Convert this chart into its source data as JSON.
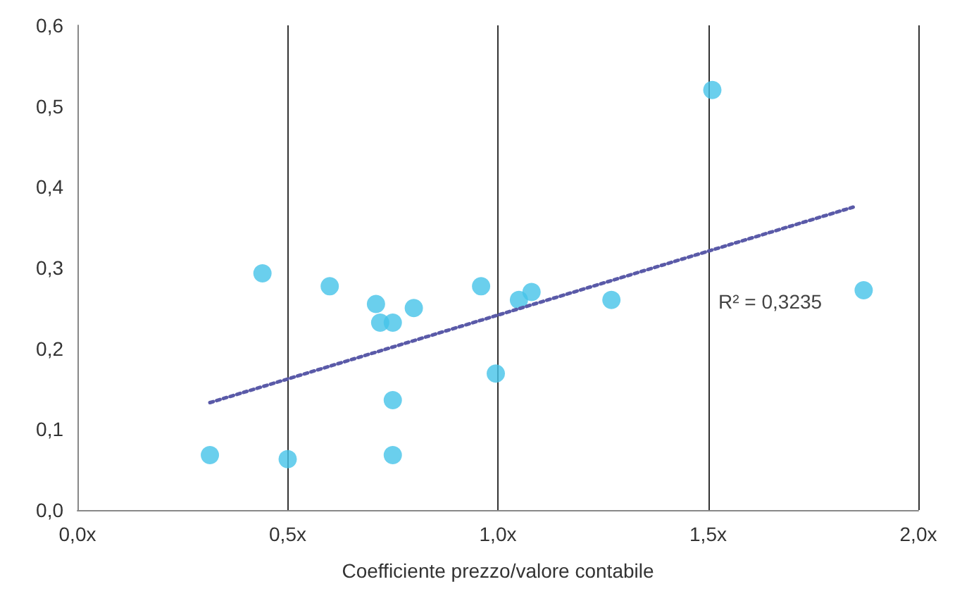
{
  "chart_data": {
    "type": "scatter",
    "xlabel": "Coefficiente prezzo/valore contabile",
    "series": [
      {
        "color": "#45c3e8",
        "marker": "circle",
        "x": [
          0.315,
          0.44,
          0.5,
          0.6,
          0.71,
          0.72,
          0.75,
          0.75,
          0.75,
          0.8,
          0.96,
          0.995,
          1.05,
          1.08,
          1.27,
          1.51,
          1.87
        ],
        "values": [
          0.068,
          0.293,
          0.063,
          0.277,
          0.255,
          0.232,
          0.232,
          0.136,
          0.068,
          0.25,
          0.277,
          0.169,
          0.26,
          0.27,
          0.26,
          0.52,
          0.272
        ]
      },
      {
        "type": "line",
        "color": "#5a5aa8",
        "marker": "none",
        "line_style": "dotted",
        "x": [
          0.315,
          1.845
        ],
        "values": [
          0.133,
          0.375
        ]
      }
    ],
    "xlim": [
      0,
      2
    ],
    "xticks": [
      {
        "value": 0,
        "label": "0,0x"
      },
      {
        "value": 0.5,
        "label": "0,5x"
      },
      {
        "value": 1,
        "label": "1,0x"
      },
      {
        "value": 1.5,
        "label": "1,5x"
      },
      {
        "value": 2,
        "label": "2,0x"
      }
    ],
    "ylim": [
      0,
      0.6
    ],
    "yticks": [
      {
        "value": 0,
        "label": "0,0"
      },
      {
        "value": 0.1,
        "label": "0,1"
      },
      {
        "value": 0.2,
        "label": "0,2"
      },
      {
        "value": 0.3,
        "label": "0,3"
      },
      {
        "value": 0.4,
        "label": "0,4"
      },
      {
        "value": 0.5,
        "label": "0,5"
      },
      {
        "value": 0.6,
        "label": "0,6"
      }
    ],
    "grid": "x",
    "annotations": [
      "R² = 0,3235"
    ]
  }
}
